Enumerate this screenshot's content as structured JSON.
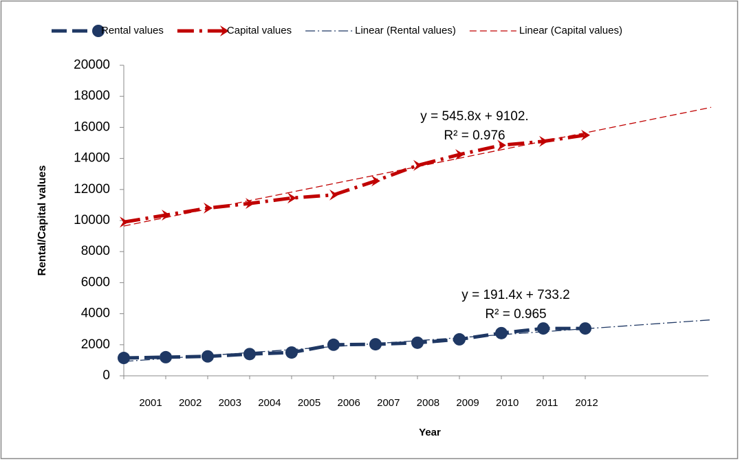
{
  "chart_data": {
    "type": "line",
    "x_label": "Year",
    "y_label": "Rental/Capital values",
    "categories": [
      "2001",
      "2002",
      "2003",
      "2004",
      "2005",
      "2006",
      "2007",
      "2008",
      "2009",
      "2010",
      "2011",
      "2012"
    ],
    "series": [
      {
        "name": "Rental values",
        "color": "#1f3864",
        "marker": "circle",
        "values": [
          1150,
          1200,
          1250,
          1400,
          1500,
          2000,
          2030,
          2130,
          2350,
          2750,
          3050,
          3050
        ]
      },
      {
        "name": "Capital values",
        "color": "#c00000",
        "marker": "arrow",
        "values": [
          9900,
          10350,
          10800,
          11100,
          11450,
          11650,
          12550,
          13550,
          14250,
          14850,
          15100,
          15500
        ]
      }
    ],
    "trendlines": [
      {
        "name": "Linear (Rental values)",
        "color": "#1f3864",
        "slope": 191.4,
        "intercept": 733.2,
        "x_range": [
          1,
          15
        ],
        "equation": "y = 191.4x + 733.2",
        "r_squared_label": "R² = 0.965"
      },
      {
        "name": "Linear (Capital values)",
        "color": "#c00000",
        "slope": 545.8,
        "intercept": 9102,
        "x_range": [
          1,
          15
        ],
        "equation": "y = 545.8x + 9102.",
        "r_squared_label": "R² = 0.976"
      }
    ],
    "ylim": [
      0,
      20000
    ],
    "yticks": [
      0,
      2000,
      4000,
      6000,
      8000,
      10000,
      12000,
      14000,
      16000,
      18000,
      20000
    ],
    "legend": "top"
  }
}
